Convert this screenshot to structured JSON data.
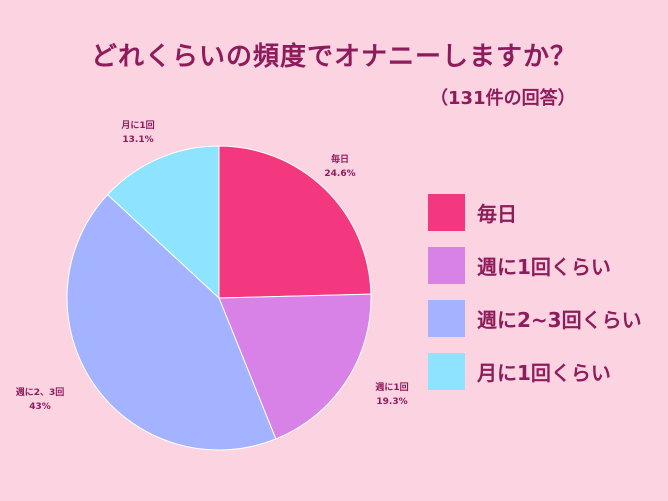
{
  "chart_data": {
    "type": "pie",
    "title": "どれくらいの頻度でオナニーしますか？",
    "subtitle": "（131件の回答）",
    "slices": [
      {
        "label": "毎日",
        "chart_label": "毎日",
        "value": 24.6,
        "value_text": "24.6%",
        "color": "#f3387f"
      },
      {
        "label": "週に1回くらい",
        "chart_label": "週に1回",
        "value": 19.3,
        "value_text": "19.3%",
        "color": "#d882e8"
      },
      {
        "label": "週に2~3回くらい",
        "chart_label": "週に2、3回",
        "value": 43,
        "value_text": "43%",
        "color": "#a3b3ff"
      },
      {
        "label": "月に1回くらい",
        "chart_label": "月に1回",
        "value": 13.1,
        "value_text": "13.1%",
        "color": "#8ee4ff"
      }
    ],
    "legend_placement": "right"
  }
}
